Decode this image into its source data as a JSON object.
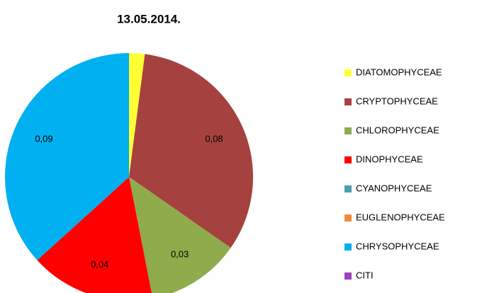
{
  "chart_data": {
    "type": "pie",
    "title": "13.05.2014.",
    "categories": [
      "DIATOMOPHYCEAE",
      "CRYPTOPHYCEAE",
      "CHLOROPHYCEAE",
      "DINOPHYCEAE",
      "CYANOPHYCEAE",
      "EUGLENOPHYCEAE",
      "CHRYSOPHYCEAE",
      "CITI"
    ],
    "values": [
      0.005,
      0.08,
      0.03,
      0.04,
      0,
      0,
      0.09,
      0
    ],
    "value_labels": [
      null,
      "0,08",
      "0,03",
      "0,04",
      null,
      null,
      "0,09",
      null
    ],
    "colors": [
      "#ffff33",
      "#a5423f",
      "#8fab4c",
      "#ff0000",
      "#4a9fb0",
      "#f08a3c",
      "#00b0f0",
      "#a040c0"
    ],
    "legend": "right"
  }
}
